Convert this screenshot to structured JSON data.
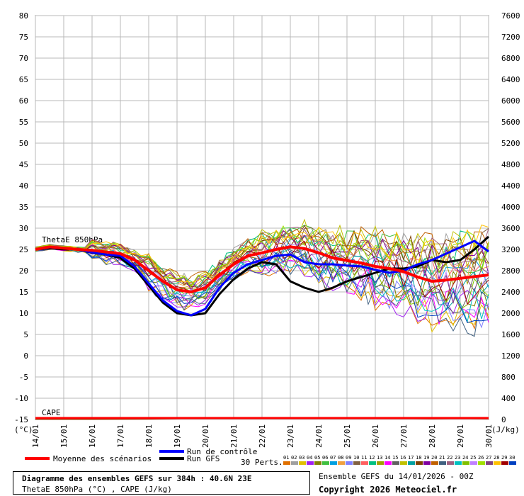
{
  "chart_data": {
    "type": "line",
    "title": "Diagramme des ensembles GEFS sur 384h : 40.6N 23E",
    "subtitle": "ThetaE 850hPa (°C) , CAPE (J/kg)",
    "run_info": "Ensemble GEFS du 14/01/2026 - 00Z",
    "copyright": "Copyright 2026 Meteociel.fr",
    "left_axis": {
      "unit_label": "(°C)",
      "ylim": [
        -15,
        80
      ],
      "ticks": [
        "80",
        "75",
        "70",
        "65",
        "60",
        "55",
        "50",
        "45",
        "40",
        "35",
        "30",
        "25",
        "20",
        "15",
        "10",
        "5",
        "0",
        "-5",
        "-10",
        "-15"
      ]
    },
    "right_axis": {
      "unit_label": "(J/kg)",
      "ylim": [
        0,
        7600
      ],
      "ticks": [
        "7600",
        "7200",
        "6800",
        "6400",
        "6000",
        "5600",
        "5200",
        "4800",
        "4400",
        "4000",
        "3600",
        "3200",
        "2800",
        "2400",
        "2000",
        "1600",
        "1200",
        "800",
        "400",
        "0"
      ]
    },
    "x": {
      "ticks": [
        "14/01",
        "15/01",
        "16/01",
        "17/01",
        "18/01",
        "19/01",
        "20/01",
        "21/01",
        "22/01",
        "23/01",
        "24/01",
        "25/01",
        "26/01",
        "27/01",
        "28/01",
        "29/01",
        "30/01"
      ],
      "range_days": [
        0,
        16
      ]
    },
    "panel_labels": {
      "thetae": "ThetaE 850hPa",
      "cape": "CAPE"
    },
    "legend": {
      "mean": "Moyenne des scénarios",
      "control": "Run de contrôle",
      "gfs": "Run GFS",
      "perts_label": "30 Perts.",
      "pert_ids": [
        "01",
        "02",
        "03",
        "04",
        "05",
        "06",
        "07",
        "08",
        "09",
        "10",
        "11",
        "12",
        "13",
        "14",
        "15",
        "16",
        "17",
        "18",
        "19",
        "20",
        "21",
        "22",
        "23",
        "24",
        "25",
        "26",
        "27",
        "28",
        "29",
        "30"
      ],
      "pert_colors": [
        "#e07000",
        "#a0a0a0",
        "#e0c000",
        "#a020f0",
        "#808000",
        "#40c040",
        "#00a0e0",
        "#f0a040",
        "#8080ff",
        "#806040",
        "#ff6060",
        "#00c080",
        "#a0a000",
        "#ff00ff",
        "#606060",
        "#c0c000",
        "#00a0a0",
        "#804000",
        "#8000a0",
        "#c06000",
        "#406080",
        "#a06080",
        "#00c0c0",
        "#80c000",
        "#c080ff",
        "#a0e000",
        "#804080",
        "#ffc000",
        "#a00000",
        "#0040c0"
      ]
    },
    "series": [
      {
        "name": "Moyenne des scénarios",
        "color": "#ff0000",
        "x": [
          0,
          0.5,
          1,
          1.5,
          2,
          2.5,
          3,
          3.5,
          4,
          4.5,
          5,
          5.5,
          6,
          6.5,
          7,
          7.5,
          8,
          8.5,
          9,
          9.5,
          10,
          10.5,
          11,
          11.5,
          12,
          12.5,
          13,
          13.5,
          14,
          14.5,
          15,
          15.5,
          16
        ],
        "values": [
          25,
          25.6,
          25.3,
          25,
          24.8,
          24.4,
          24,
          22.5,
          20,
          17.5,
          15.5,
          15,
          16,
          19,
          21.5,
          23.5,
          24.2,
          25,
          25.6,
          25.2,
          24.2,
          23,
          22.4,
          21.8,
          21,
          20.5,
          19.8,
          18.5,
          17.5,
          17.8,
          18.2,
          18.6,
          19
        ]
      },
      {
        "name": "Run de contrôle",
        "color": "#0000ff",
        "x": [
          0,
          0.5,
          1,
          1.5,
          2,
          2.5,
          3,
          3.5,
          4,
          4.5,
          5,
          5.5,
          6,
          6.5,
          7,
          7.5,
          8,
          8.5,
          9,
          9.5,
          10,
          10.5,
          11,
          11.5,
          12,
          12.5,
          13,
          13.5,
          14,
          14.5,
          15,
          15.5,
          16
        ],
        "values": [
          25,
          25.5,
          25.2,
          25,
          24.3,
          23.8,
          23.5,
          21,
          17,
          13,
          10.5,
          9.5,
          11,
          16,
          19.5,
          21.5,
          22.5,
          23.5,
          23.8,
          22,
          21.5,
          21.5,
          21.2,
          21,
          20.2,
          19.5,
          20,
          21.5,
          22.5,
          24,
          25.5,
          27,
          24.5
        ]
      },
      {
        "name": "Run GFS",
        "color": "#000000",
        "x": [
          0,
          0.5,
          1,
          1.5,
          2,
          2.5,
          3,
          3.5,
          4,
          4.5,
          5,
          5.5,
          6,
          6.5,
          7,
          7.5,
          8,
          8.5,
          9,
          9.5,
          10,
          10.5,
          11,
          11.5,
          12,
          12.5,
          13,
          13.5,
          14,
          14.5,
          15,
          15.5,
          16
        ],
        "values": [
          25,
          25.3,
          25,
          25,
          24.2,
          23.8,
          23,
          20.5,
          16.5,
          12.5,
          10,
          9.5,
          10,
          14.5,
          18,
          20.5,
          22,
          21.5,
          17.5,
          16,
          15,
          16,
          17.5,
          18.5,
          19.5,
          20.5,
          20.5,
          21,
          22.5,
          22,
          22.5,
          25,
          28
        ]
      }
    ],
    "perturbation_envelope_note": "30 ensemble perturbation traces",
    "cape_series_mean": {
      "x": [
        0,
        2,
        4,
        6,
        7,
        8,
        9,
        10,
        11,
        12,
        13,
        14,
        15,
        16
      ],
      "values": [
        0,
        0,
        5,
        20,
        30,
        20,
        15,
        40,
        30,
        20,
        15,
        10,
        15,
        10
      ]
    }
  }
}
